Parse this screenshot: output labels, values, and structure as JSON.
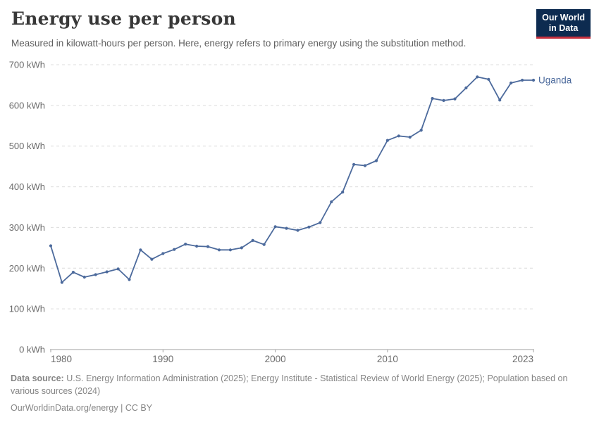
{
  "header": {
    "title": "Energy use per person",
    "subtitle": "Measured in kilowatt-hours per person. Here, energy refers to primary energy using the substitution method.",
    "logo": {
      "line1": "Our World",
      "line2": "in Data",
      "bg_color": "#0d2b50",
      "accent_color": "#c5303e"
    }
  },
  "chart_data": {
    "type": "line",
    "title": "Energy use per person",
    "unit": "kWh",
    "xlim": [
      1980,
      2023
    ],
    "ylim": [
      0,
      700
    ],
    "yticks": [
      0,
      100,
      200,
      300,
      400,
      500,
      600,
      700
    ],
    "ytick_suffix": " kWh",
    "xticks": [
      1980,
      1990,
      2000,
      2010,
      2023
    ],
    "grid": "horizontal-dashed",
    "grid_color": "#dcdcdc",
    "axis_color": "#a1a1a1",
    "tick_label_color": "#6b6b6b",
    "legend_position": "end-of-line-label",
    "x": [
      1980,
      1981,
      1982,
      1983,
      1984,
      1985,
      1986,
      1987,
      1988,
      1989,
      1990,
      1991,
      1992,
      1993,
      1994,
      1995,
      1996,
      1997,
      1998,
      1999,
      2000,
      2001,
      2002,
      2003,
      2004,
      2005,
      2006,
      2007,
      2008,
      2009,
      2010,
      2011,
      2012,
      2013,
      2014,
      2015,
      2016,
      2017,
      2018,
      2019,
      2020,
      2021,
      2022,
      2023
    ],
    "series": [
      {
        "name": "Uganda",
        "color": "#4c6a9c",
        "values": [
          255,
          165,
          190,
          178,
          184,
          191,
          198,
          172,
          245,
          222,
          236,
          246,
          259,
          254,
          253,
          245,
          245,
          250,
          268,
          258,
          302,
          298,
          293,
          301,
          312,
          363,
          387,
          455,
          452,
          464,
          514,
          525,
          522,
          539,
          617,
          612,
          616,
          643,
          670,
          664,
          613,
          655,
          662,
          662
        ]
      }
    ]
  },
  "footer": {
    "source_label": "Data source:",
    "sources": "U.S. Energy Information Administration (2025); Energy Institute - Statistical Review of World Energy (2025); Population based on various sources (2024)",
    "link": "OurWorldinData.org/energy",
    "separator": " | ",
    "license": "CC BY"
  }
}
